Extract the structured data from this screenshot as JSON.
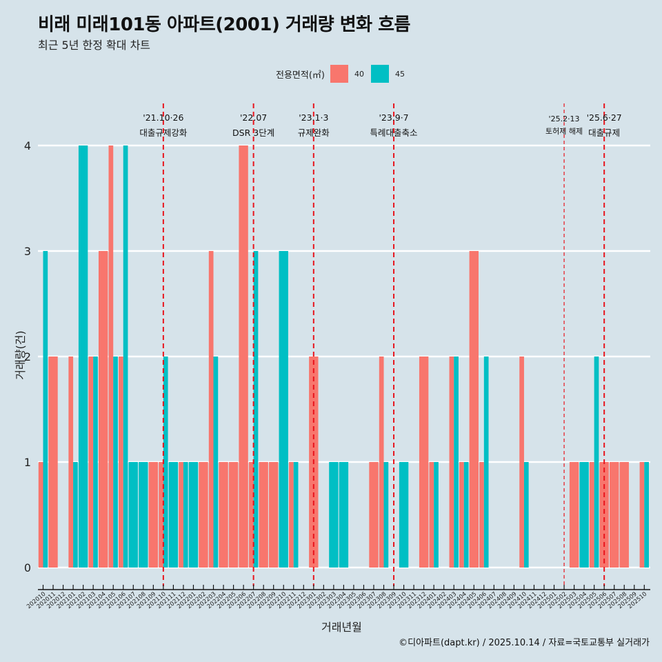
{
  "title": "비래 미래101동 아파트(2001) 거래량 변화 흐름",
  "subtitle": "최근 5년 한정 확대 차트",
  "legend": {
    "title": "전용면적(㎡)",
    "items": [
      {
        "label": "40",
        "color": "#f8766d"
      },
      {
        "label": "45",
        "color": "#00bfc4"
      }
    ]
  },
  "caption": "©디아파트(dapt.kr) / 2025.10.14 / 자료=국토교통부 실거래가",
  "chart_data": {
    "type": "bar",
    "title": "비래 미래101동 아파트(2001) 거래량 변화 흐름",
    "subtitle": "최근 5년 한정 확대 차트",
    "xlabel": "거래년월",
    "ylabel": "거래량(건)",
    "ylim": [
      0,
      4
    ],
    "yticks": [
      0,
      1,
      2,
      3,
      4
    ],
    "grid": "horizontal",
    "legend_position": "top",
    "bar_mode": "dodge",
    "categories": [
      "202010",
      "202011",
      "202012",
      "202101",
      "202102",
      "202103",
      "202104",
      "202105",
      "202106",
      "202107",
      "202108",
      "202109",
      "202110",
      "202111",
      "202112",
      "202201",
      "202202",
      "202203",
      "202204",
      "202205",
      "202206",
      "202207",
      "202208",
      "202209",
      "202210",
      "202211",
      "202212",
      "202301",
      "202302",
      "202303",
      "202304",
      "202305",
      "202306",
      "202307",
      "202308",
      "202309",
      "202310",
      "202311",
      "202312",
      "202401",
      "202402",
      "202403",
      "202404",
      "202405",
      "202406",
      "202407",
      "202408",
      "202409",
      "202410",
      "202411",
      "202412",
      "202501",
      "202502",
      "202503",
      "202504",
      "202505",
      "202506",
      "202507",
      "202508",
      "202509",
      "202510"
    ],
    "series": [
      {
        "name": "40",
        "color": "#f8766d",
        "values": [
          1,
          2,
          null,
          2,
          null,
          2,
          3,
          4,
          2,
          null,
          null,
          1,
          1,
          null,
          1,
          null,
          1,
          3,
          1,
          1,
          4,
          1,
          1,
          1,
          null,
          1,
          null,
          2,
          null,
          null,
          null,
          null,
          null,
          1,
          2,
          null,
          null,
          null,
          2,
          1,
          null,
          2,
          1,
          3,
          1,
          null,
          null,
          null,
          2,
          null,
          null,
          null,
          null,
          1,
          null,
          1,
          1,
          1,
          1,
          null,
          1
        ]
      },
      {
        "name": "45",
        "color": "#00bfc4",
        "values": [
          3,
          null,
          null,
          1,
          4,
          2,
          null,
          2,
          4,
          1,
          1,
          null,
          2,
          1,
          1,
          1,
          null,
          2,
          null,
          null,
          null,
          3,
          null,
          null,
          3,
          1,
          null,
          null,
          null,
          1,
          1,
          null,
          null,
          null,
          1,
          null,
          1,
          null,
          null,
          1,
          null,
          2,
          1,
          null,
          2,
          null,
          null,
          null,
          1,
          null,
          null,
          null,
          null,
          null,
          1,
          2,
          null,
          null,
          null,
          null,
          1
        ]
      }
    ],
    "annotations": [
      {
        "month": "202110",
        "date": "'21.10·26",
        "label": "대출규제강화",
        "style": "bold"
      },
      {
        "month": "202207",
        "date": "'22.07",
        "label": "DSR 3단계",
        "style": "bold"
      },
      {
        "month": "202301",
        "date": "'23.1·3",
        "label": "규제완화",
        "style": "bold"
      },
      {
        "month": "202309",
        "date": "'23.9·7",
        "label": "특례대출축소",
        "style": "bold"
      },
      {
        "month": "202502",
        "date": "'25.2·13",
        "label": "토허제 해제",
        "style": "thin"
      },
      {
        "month": "202506",
        "date": "'25.6·27",
        "label": "대출규제",
        "style": "bold"
      }
    ]
  }
}
